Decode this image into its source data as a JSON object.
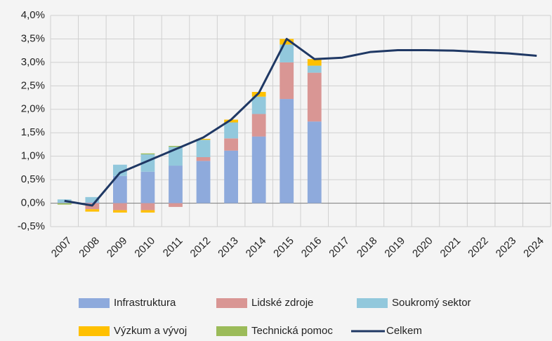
{
  "chart_data": {
    "type": "bar",
    "stacked": true,
    "categories": [
      "2007",
      "2008",
      "2009",
      "2010",
      "2011",
      "2012",
      "2013",
      "2014",
      "2015",
      "2016",
      "2017",
      "2018",
      "2019",
      "2020",
      "2021",
      "2022",
      "2023",
      "2024"
    ],
    "series": [
      {
        "name": "Infrastruktura",
        "color": "#8eaadc",
        "values": [
          0.02,
          0.02,
          0.58,
          0.67,
          0.8,
          0.9,
          1.12,
          1.42,
          2.22,
          1.74,
          null,
          null,
          null,
          null,
          null,
          null,
          null,
          null
        ]
      },
      {
        "name": "Lidské zdroje",
        "color": "#d99694",
        "values": [
          0,
          -0.13,
          -0.15,
          -0.15,
          -0.08,
          0.08,
          0.26,
          0.48,
          0.78,
          1.04,
          null,
          null,
          null,
          null,
          null,
          null,
          null,
          null
        ]
      },
      {
        "name": "Soukromý sektor",
        "color": "#92c8dc",
        "values": [
          0.06,
          0.11,
          0.24,
          0.37,
          0.4,
          0.37,
          0.34,
          0.37,
          0.38,
          0.15,
          null,
          null,
          null,
          null,
          null,
          null,
          null,
          null
        ]
      },
      {
        "name": "Výzkum a vývoj",
        "color": "#ffc000",
        "values": [
          0,
          -0.05,
          -0.05,
          -0.05,
          0,
          0.02,
          0.06,
          0.1,
          0.12,
          0.14,
          null,
          null,
          null,
          null,
          null,
          null,
          null,
          null
        ]
      },
      {
        "name": "Technická pomoc",
        "color": "#9bbb59",
        "values": [
          -0.03,
          0,
          0,
          0.02,
          0.02,
          0,
          0,
          0,
          0,
          0,
          null,
          null,
          null,
          null,
          null,
          null,
          null,
          null
        ]
      },
      {
        "name": "Celkem",
        "color": "#1f3864",
        "type": "line",
        "values": [
          0.05,
          -0.05,
          0.65,
          0.9,
          1.15,
          1.4,
          1.78,
          2.35,
          3.5,
          3.07,
          3.1,
          3.22,
          3.26,
          3.26,
          3.25,
          3.22,
          3.19,
          3.14
        ]
      }
    ],
    "ylim": [
      -0.5,
      4.0
    ],
    "yticks": [
      {
        "value": -0.5,
        "label": "-0,5%"
      },
      {
        "value": 0,
        "label": "0,0%"
      },
      {
        "value": 0.5,
        "label": "0,5%"
      },
      {
        "value": 1.0,
        "label": "1,0%"
      },
      {
        "value": 1.5,
        "label": "1,5%"
      },
      {
        "value": 2.0,
        "label": "2,0%"
      },
      {
        "value": 2.5,
        "label": "2,5%"
      },
      {
        "value": 3.0,
        "label": "3,0%"
      },
      {
        "value": 3.5,
        "label": "3,5%"
      },
      {
        "value": 4.0,
        "label": "4,0%"
      }
    ],
    "grid": true,
    "legend": "bottom"
  }
}
